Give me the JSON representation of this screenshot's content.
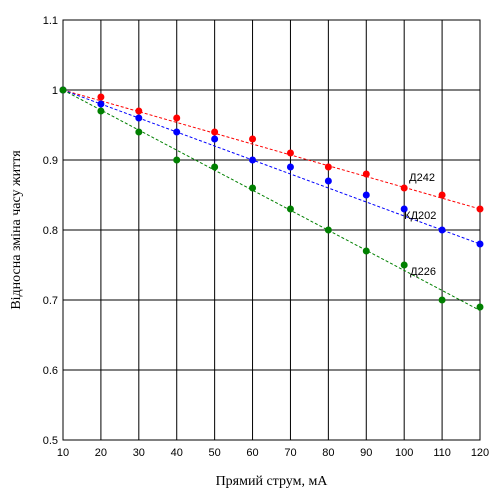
{
  "chart_data": {
    "type": "scatter",
    "title": "",
    "xlabel": "Прямий струм, мА",
    "ylabel": "Відносна зміна часу життя",
    "xlim": [
      10,
      120
    ],
    "ylim": [
      0.5,
      1.1
    ],
    "xticks": [
      10,
      20,
      30,
      40,
      50,
      60,
      70,
      80,
      90,
      100,
      110,
      120
    ],
    "yticks": [
      0.5,
      0.6,
      0.7,
      0.8,
      0.9,
      1,
      1.1
    ],
    "ytick_labels": [
      "0.5",
      "0.6",
      "0.7",
      "0.8",
      "0.9",
      "1",
      "1.1"
    ],
    "grid": true,
    "legend": "inline labels near series ends",
    "series": [
      {
        "name": "Д242",
        "color": "#ff0000",
        "x": [
          10,
          20,
          30,
          40,
          50,
          60,
          70,
          80,
          90,
          100,
          110,
          120
        ],
        "y": [
          1.0,
          0.99,
          0.97,
          0.96,
          0.94,
          0.93,
          0.91,
          0.89,
          0.88,
          0.86,
          0.85,
          0.83
        ],
        "fit": [
          [
            10,
            1.0
          ],
          [
            120,
            0.83
          ]
        ]
      },
      {
        "name": "КД202",
        "color": "#0000ff",
        "x": [
          10,
          20,
          30,
          40,
          50,
          60,
          70,
          80,
          90,
          100,
          110,
          120
        ],
        "y": [
          1.0,
          0.98,
          0.96,
          0.94,
          0.93,
          0.9,
          0.89,
          0.87,
          0.85,
          0.83,
          0.8,
          0.78
        ],
        "fit": [
          [
            10,
            1.0
          ],
          [
            120,
            0.78
          ]
        ]
      },
      {
        "name": "Д226",
        "color": "#008000",
        "x": [
          10,
          20,
          30,
          40,
          50,
          60,
          70,
          80,
          90,
          100,
          110,
          120
        ],
        "y": [
          1.0,
          0.97,
          0.94,
          0.9,
          0.89,
          0.86,
          0.83,
          0.8,
          0.77,
          0.75,
          0.7,
          0.69
        ],
        "fit": [
          [
            10,
            1.0
          ],
          [
            120,
            0.685
          ]
        ]
      }
    ]
  }
}
